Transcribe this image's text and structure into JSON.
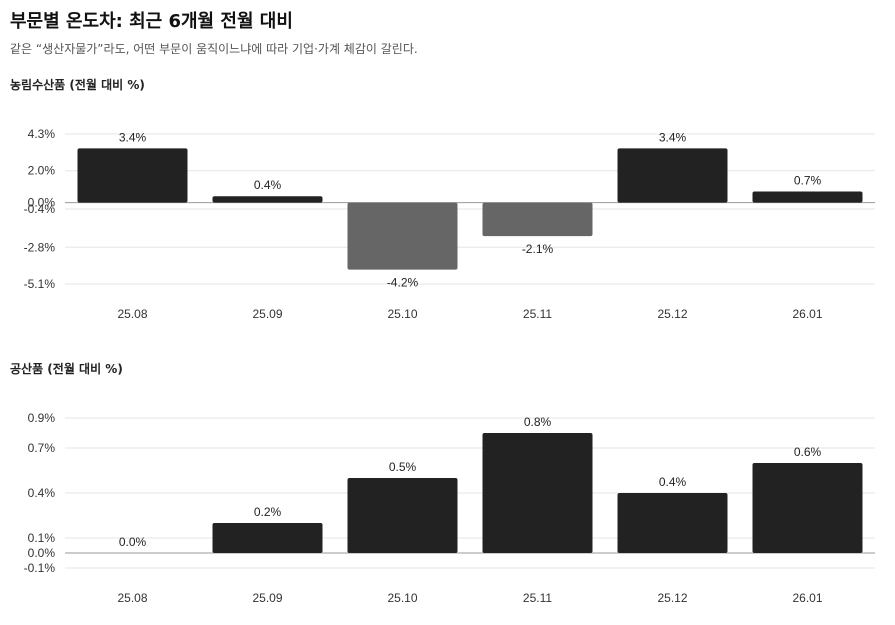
{
  "header": {
    "title": "부문별 온도차: 최근 6개월 전월 대비",
    "subtitle": "같은 “생산자물가”라도, 어떤 부문이 움직이느냐에 따라 기업·가계 체감이 갈린다."
  },
  "colors": {
    "positive": "#222222",
    "negative": "#666666",
    "grid": "#e6e6e6",
    "zero": "#999999"
  },
  "chart_data": [
    {
      "type": "bar",
      "title": "농림수산품 (전월 대비 %)",
      "categories": [
        "25.08",
        "25.09",
        "25.10",
        "25.11",
        "25.12",
        "26.01"
      ],
      "values": [
        3.4,
        0.4,
        -4.2,
        -2.1,
        3.4,
        0.7
      ],
      "value_labels": [
        "3.4%",
        "0.4%",
        "-4.2%",
        "-2.1%",
        "3.4%",
        "0.7%"
      ],
      "yticks": [
        4.3,
        2.0,
        0.0,
        -0.4,
        -2.8,
        -5.1
      ],
      "ytick_labels": [
        "4.3%",
        "2.0%",
        "0.0%",
        "-0.4%",
        "-2.8%",
        "-5.1%"
      ],
      "ylim": [
        -5.1,
        4.3
      ],
      "grid": true
    },
    {
      "type": "bar",
      "title": "공산품 (전월 대비 %)",
      "categories": [
        "25.08",
        "25.09",
        "25.10",
        "25.11",
        "25.12",
        "26.01"
      ],
      "values": [
        0.0,
        0.2,
        0.5,
        0.8,
        0.4,
        0.6
      ],
      "value_labels": [
        "0.0%",
        "0.2%",
        "0.5%",
        "0.8%",
        "0.4%",
        "0.6%"
      ],
      "yticks": [
        0.9,
        0.7,
        0.4,
        0.1,
        0.0,
        -0.1
      ],
      "ytick_labels": [
        "0.9%",
        "0.7%",
        "0.4%",
        "0.1%",
        "0.0%",
        "-0.1%"
      ],
      "ylim": [
        -0.1,
        0.9
      ],
      "grid": true
    }
  ]
}
